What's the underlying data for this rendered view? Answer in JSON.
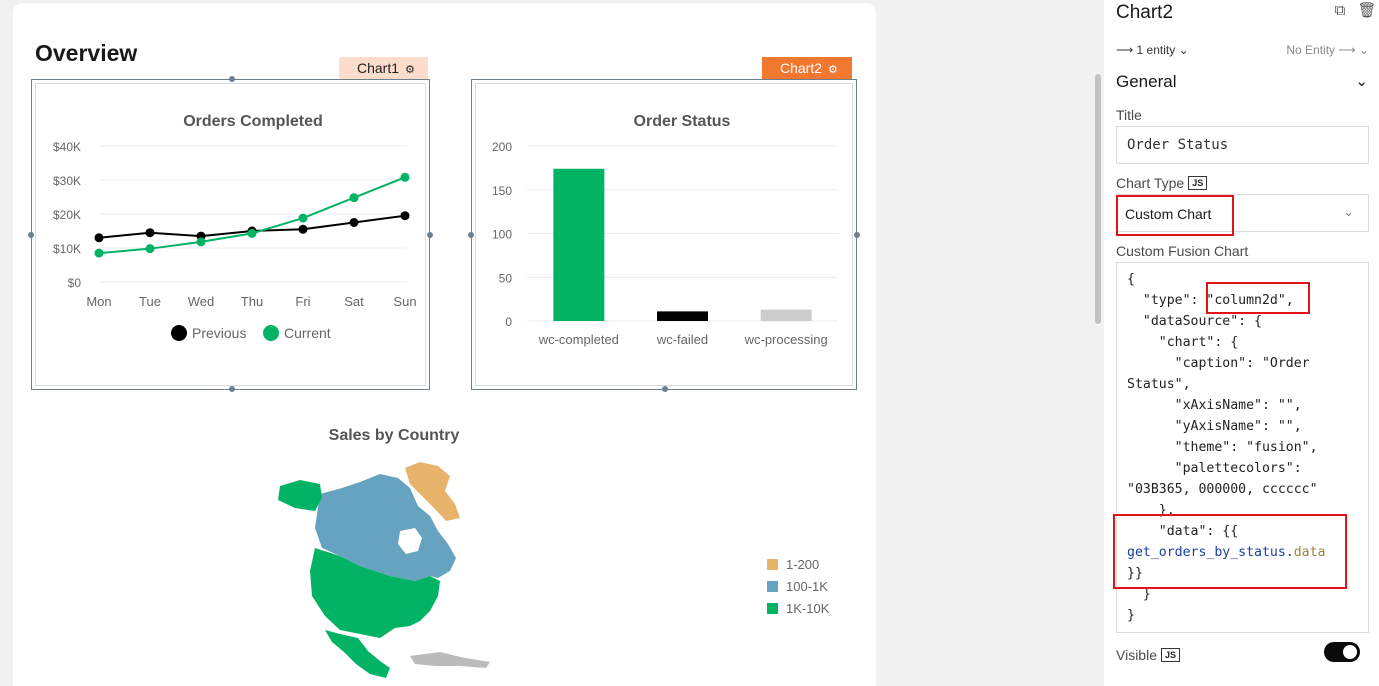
{
  "page": {
    "title": "Overview"
  },
  "widgets": {
    "chart1_tag": "Chart1",
    "chart2_tag": "Chart2"
  },
  "charts": {
    "orders": {
      "title": "Orders Completed",
      "y_ticks": [
        "$40K",
        "$30K",
        "$20K",
        "$10K",
        "$0"
      ],
      "legend": [
        "Previous",
        "Current"
      ]
    },
    "status": {
      "title": "Order Status",
      "y_ticks": [
        "200",
        "150",
        "100",
        "50",
        "0"
      ]
    },
    "sales": {
      "title": "Sales by Country",
      "legend": [
        "1-200",
        "100-1K",
        "1K-10K"
      ]
    }
  },
  "colors": {
    "accent_orange": "#f2772f",
    "green": "#03b365",
    "black": "#000000",
    "grey": "#cccccc",
    "map_orange": "#e8b36a",
    "map_blue": "#65a3c0",
    "highlight_red": "#e0121a"
  },
  "chart_data": [
    {
      "type": "line",
      "title": "Orders Completed",
      "categories": [
        "Mon",
        "Tue",
        "Wed",
        "Thu",
        "Fri",
        "Sat",
        "Sun"
      ],
      "series": [
        {
          "name": "Previous",
          "values": [
            13000,
            14500,
            13500,
            15000,
            15500,
            17500,
            19500
          ]
        },
        {
          "name": "Current",
          "values": [
            8500,
            9800,
            11800,
            14300,
            18800,
            24800,
            30800
          ]
        }
      ],
      "ylim": [
        0,
        40000
      ]
    },
    {
      "type": "bar",
      "title": "Order Status",
      "categories": [
        "wc-completed",
        "wc-failed",
        "wc-processing"
      ],
      "values": [
        174,
        11,
        13
      ],
      "ylim": [
        0,
        200
      ]
    }
  ],
  "panel": {
    "title": "Chart2",
    "copy_icon": "copy-icon",
    "delete_icon": "trash-icon",
    "entity_link": "1 entity",
    "no_entity": "No Entity",
    "section": "General",
    "title_label": "Title",
    "title_value": "Order Status",
    "chart_type_label": "Chart Type",
    "js_badge": "JS",
    "chart_type_value": "Custom Chart",
    "custom_label": "Custom Fusion Chart",
    "visible_label": "Visible",
    "code": [
      "{",
      "  \"type\": \"column2d\",",
      "  \"dataSource\": {",
      "    \"chart\": {",
      "      \"caption\": \"Order",
      "Status\",",
      "      \"xAxisName\": \"\",",
      "      \"yAxisName\": \"\",",
      "      \"theme\": \"fusion\",",
      "      \"palettecolors\":",
      "\"03B365, 000000, cccccc\"",
      "    },",
      "    \"data\": {{",
      "get_orders_by_status.data",
      "}}",
      "  }",
      "}"
    ]
  }
}
